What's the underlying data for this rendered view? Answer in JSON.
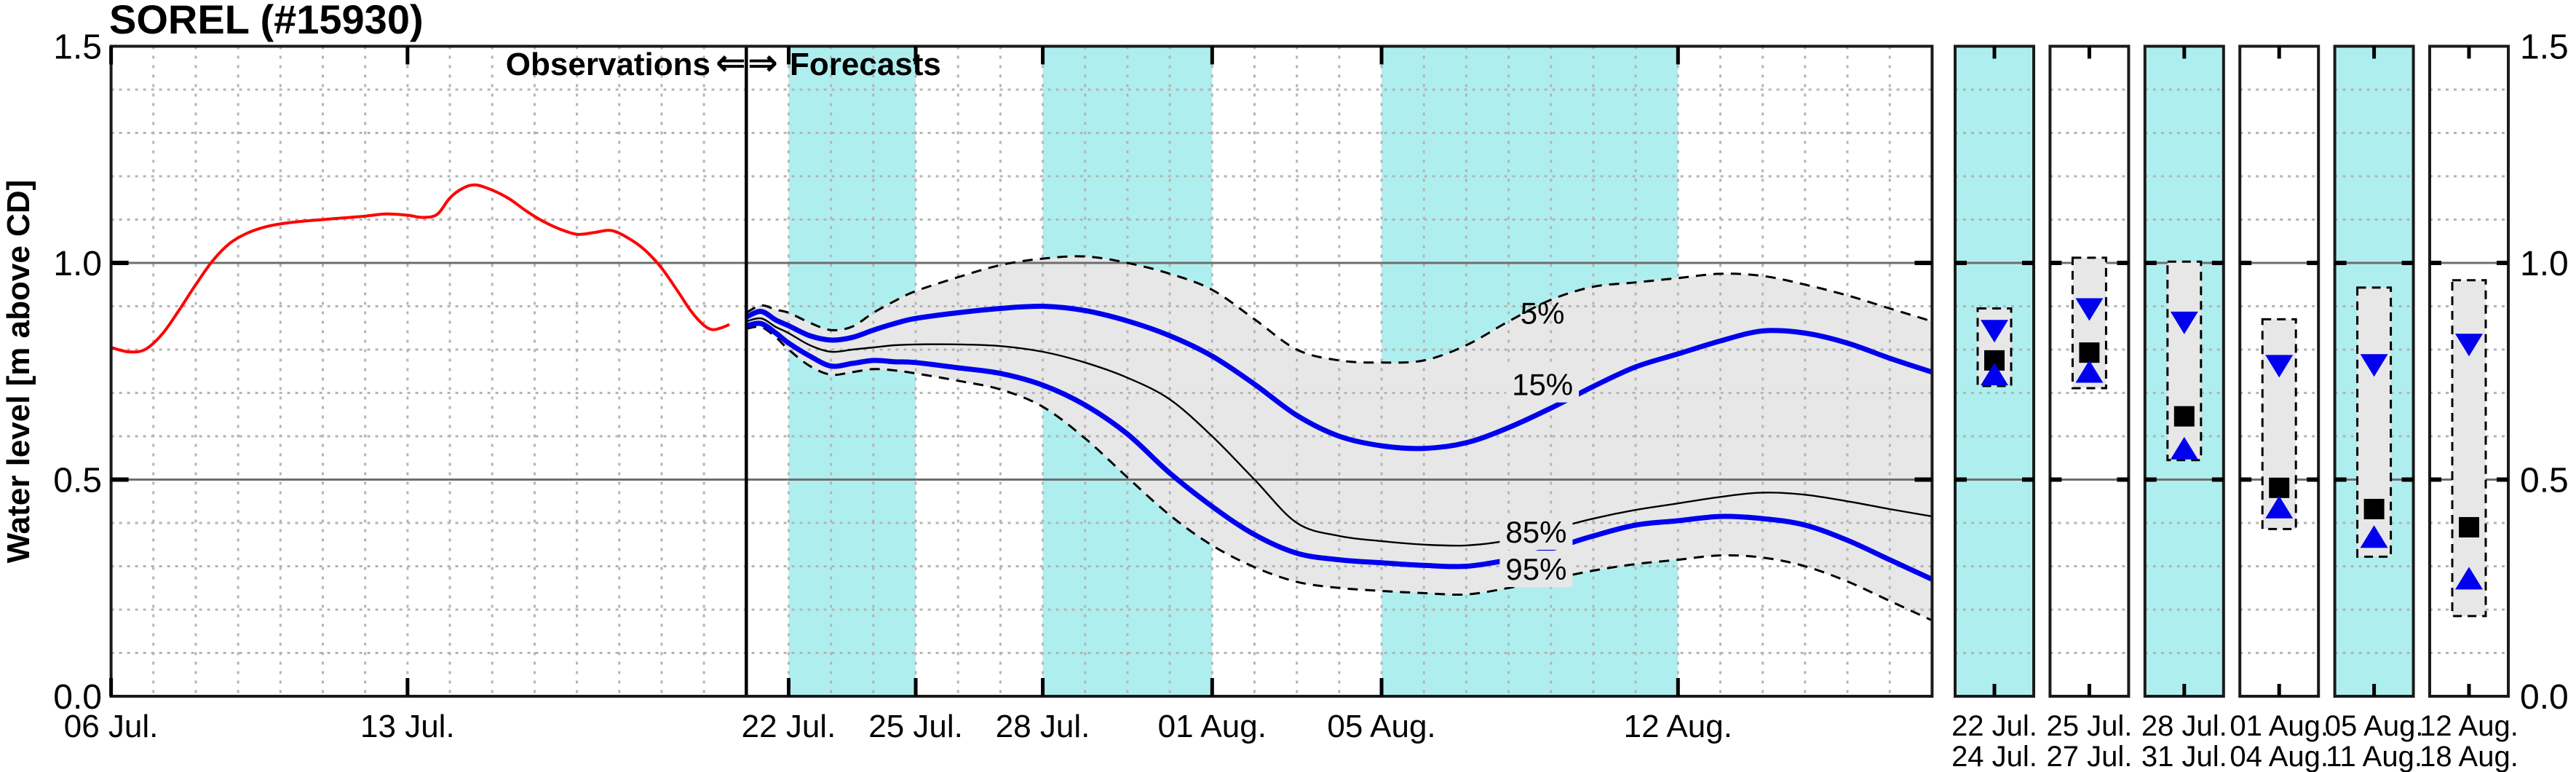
{
  "header": {
    "title": "SOREL (#15930)"
  },
  "axes": {
    "y_label": "Water level [m above CD]",
    "ylim": [
      0.0,
      1.5
    ],
    "y_major": [
      0.5,
      1.0
    ],
    "y_minor_step": 0.1,
    "y_ticks_left": [
      "1.5",
      "1.0",
      "0.5",
      "0.0"
    ],
    "y_ticks_right": [
      "1.5",
      "1.0",
      "0.5",
      "0.0"
    ],
    "y_tick_values": [
      1.5,
      1.0,
      0.5,
      0.0
    ]
  },
  "divider": {
    "label_left": "Observations",
    "arrow_left": "⇐",
    "arrow_right": "⇒",
    "label_right": "Forecasts",
    "day": 15
  },
  "chart_data": {
    "type": "line",
    "title": "SOREL (#15930)",
    "ylabel": "Water level [m above CD]",
    "ylim": [
      0,
      1.5
    ],
    "x_unit": "days since 06 Jul",
    "x_domain": [
      0,
      43
    ],
    "grid": true,
    "x_ticks": [
      {
        "d": 0,
        "label": "06 Jul."
      },
      {
        "d": 7,
        "label": "13 Jul."
      },
      {
        "d": 16,
        "label": "22 Jul."
      },
      {
        "d": 19,
        "label": "25 Jul."
      },
      {
        "d": 22,
        "label": "28 Jul."
      },
      {
        "d": 26,
        "label": "01 Aug."
      },
      {
        "d": 30,
        "label": "05 Aug."
      },
      {
        "d": 37,
        "label": "12 Aug."
      }
    ],
    "forecast_divider_day": 15,
    "weekend_bands_days": [
      [
        16,
        19
      ],
      [
        22,
        26
      ],
      [
        30,
        37
      ]
    ],
    "observed": {
      "name": "Observations",
      "color": "#ff0000",
      "points": [
        [
          0,
          0.805
        ],
        [
          0.4,
          0.795
        ],
        [
          0.8,
          0.8
        ],
        [
          1.2,
          0.835
        ],
        [
          1.6,
          0.89
        ],
        [
          2.0,
          0.95
        ],
        [
          2.4,
          1.005
        ],
        [
          2.8,
          1.045
        ],
        [
          3.2,
          1.068
        ],
        [
          3.6,
          1.082
        ],
        [
          4.0,
          1.09
        ],
        [
          4.5,
          1.096
        ],
        [
          5.0,
          1.1
        ],
        [
          5.5,
          1.104
        ],
        [
          6.0,
          1.108
        ],
        [
          6.5,
          1.113
        ],
        [
          7.0,
          1.11
        ],
        [
          7.35,
          1.105
        ],
        [
          7.7,
          1.112
        ],
        [
          8.0,
          1.15
        ],
        [
          8.3,
          1.172
        ],
        [
          8.6,
          1.18
        ],
        [
          9.0,
          1.168
        ],
        [
          9.4,
          1.148
        ],
        [
          9.8,
          1.12
        ],
        [
          10.2,
          1.096
        ],
        [
          10.6,
          1.078
        ],
        [
          11.0,
          1.066
        ],
        [
          11.4,
          1.07
        ],
        [
          11.8,
          1.075
        ],
        [
          12.2,
          1.058
        ],
        [
          12.6,
          1.03
        ],
        [
          13.0,
          0.988
        ],
        [
          13.4,
          0.932
        ],
        [
          13.7,
          0.888
        ],
        [
          14.0,
          0.856
        ],
        [
          14.2,
          0.846
        ],
        [
          14.4,
          0.85
        ],
        [
          14.6,
          0.858
        ]
      ]
    },
    "forecast": {
      "start_day": 15,
      "t": [
        0,
        0.35,
        0.7,
        1,
        1.5,
        2,
        2.5,
        3,
        3.5,
        4,
        5,
        6,
        7,
        8,
        9,
        10,
        11,
        12,
        13,
        14,
        15,
        16,
        17,
        18,
        19,
        20,
        21,
        22,
        23,
        24,
        25,
        26,
        27,
        28
      ],
      "series": [
        {
          "name": "5%",
          "style": "dashed-black",
          "values": [
            0.885,
            0.902,
            0.892,
            0.885,
            0.862,
            0.845,
            0.853,
            0.885,
            0.912,
            0.935,
            0.967,
            0.995,
            1.01,
            1.015,
            1.0,
            0.975,
            0.938,
            0.87,
            0.8,
            0.775,
            0.77,
            0.775,
            0.81,
            0.865,
            0.915,
            0.945,
            0.955,
            0.965,
            0.975,
            0.97,
            0.95,
            0.925,
            0.895,
            0.865
          ]
        },
        {
          "name": "15%",
          "style": "thick-blue",
          "values": [
            0.875,
            0.888,
            0.868,
            0.855,
            0.832,
            0.822,
            0.828,
            0.845,
            0.86,
            0.872,
            0.885,
            0.895,
            0.9,
            0.89,
            0.866,
            0.832,
            0.785,
            0.72,
            0.648,
            0.6,
            0.578,
            0.572,
            0.585,
            0.62,
            0.665,
            0.715,
            0.76,
            0.79,
            0.82,
            0.843,
            0.838,
            0.815,
            0.78,
            0.748
          ]
        },
        {
          "name": "50%",
          "style": "thin-black",
          "values": [
            0.865,
            0.872,
            0.852,
            0.838,
            0.81,
            0.795,
            0.8,
            0.805,
            0.81,
            0.812,
            0.812,
            0.808,
            0.795,
            0.77,
            0.735,
            0.685,
            0.6,
            0.5,
            0.4,
            0.37,
            0.358,
            0.35,
            0.348,
            0.36,
            0.385,
            0.41,
            0.43,
            0.445,
            0.46,
            0.47,
            0.465,
            0.45,
            0.432,
            0.415
          ]
        },
        {
          "name": "85%",
          "style": "thick-blue",
          "values": [
            0.855,
            0.86,
            0.838,
            0.815,
            0.785,
            0.762,
            0.768,
            0.775,
            0.772,
            0.77,
            0.758,
            0.745,
            0.718,
            0.672,
            0.605,
            0.515,
            0.438,
            0.373,
            0.33,
            0.315,
            0.308,
            0.302,
            0.3,
            0.315,
            0.34,
            0.37,
            0.395,
            0.405,
            0.415,
            0.41,
            0.395,
            0.36,
            0.315,
            0.27
          ]
        },
        {
          "name": "95%",
          "style": "dashed-black",
          "values": [
            0.848,
            0.852,
            0.828,
            0.8,
            0.762,
            0.742,
            0.748,
            0.755,
            0.752,
            0.745,
            0.728,
            0.708,
            0.668,
            0.595,
            0.505,
            0.418,
            0.348,
            0.298,
            0.264,
            0.25,
            0.243,
            0.238,
            0.235,
            0.25,
            0.27,
            0.29,
            0.305,
            0.315,
            0.325,
            0.32,
            0.3,
            0.265,
            0.22,
            0.175
          ]
        }
      ],
      "band": {
        "upper": "5%",
        "lower": "95%",
        "fill": "#e7e7e7"
      }
    },
    "annotations": [
      {
        "text": "5%",
        "day": 33.8,
        "value": 0.885,
        "color": "#000000",
        "bg": false
      },
      {
        "text": "15%",
        "day": 33.8,
        "value": 0.72,
        "color": "#0000ee",
        "bg": true
      },
      {
        "text": "85%",
        "day": 33.65,
        "value": 0.38,
        "color": "#0000ee",
        "bg": true
      },
      {
        "text": "95%",
        "day": 33.65,
        "value": 0.294,
        "color": "#000000",
        "bg": true
      }
    ],
    "panels": [
      {
        "label_top": "22 Jul.",
        "label_bottom": "24 Jul.",
        "weekend": true,
        "range_5_95": [
          0.716,
          0.895
        ],
        "p15": 0.845,
        "p50": 0.775,
        "p85": 0.741
      },
      {
        "label_top": "25 Jul.",
        "label_bottom": "27 Jul.",
        "weekend": false,
        "range_5_95": [
          0.711,
          1.012
        ],
        "p15": 0.895,
        "p50": 0.793,
        "p85": 0.747
      },
      {
        "label_top": "28 Jul.",
        "label_bottom": "31 Jul.",
        "weekend": true,
        "range_5_95": [
          0.545,
          1.003
        ],
        "p15": 0.864,
        "p50": 0.646,
        "p85": 0.57
      },
      {
        "label_top": "01 Aug.",
        "label_bottom": "04 Aug.",
        "weekend": false,
        "range_5_95": [
          0.386,
          0.87
        ],
        "p15": 0.764,
        "p50": 0.481,
        "p85": 0.434
      },
      {
        "label_top": "05 Aug.",
        "label_bottom": "11 Aug.",
        "weekend": true,
        "range_5_95": [
          0.322,
          0.943
        ],
        "p15": 0.766,
        "p50": 0.432,
        "p85": 0.366
      },
      {
        "label_top": "12 Aug.",
        "label_bottom": "18 Aug.",
        "weekend": false,
        "range_5_95": [
          0.185,
          0.96
        ],
        "p15": 0.813,
        "p50": 0.39,
        "p85": 0.27
      }
    ]
  },
  "colors": {
    "weekend_band": "#afeeee",
    "uncertainty_fill": "#e7e7e7",
    "percentile_blue": "#0000ee",
    "observed_red": "#ff0000",
    "grid_minor": "#b4b4b4",
    "grid_major": "#6e6e6e",
    "frame": "#1a1a1a",
    "background": "#ffffff"
  }
}
